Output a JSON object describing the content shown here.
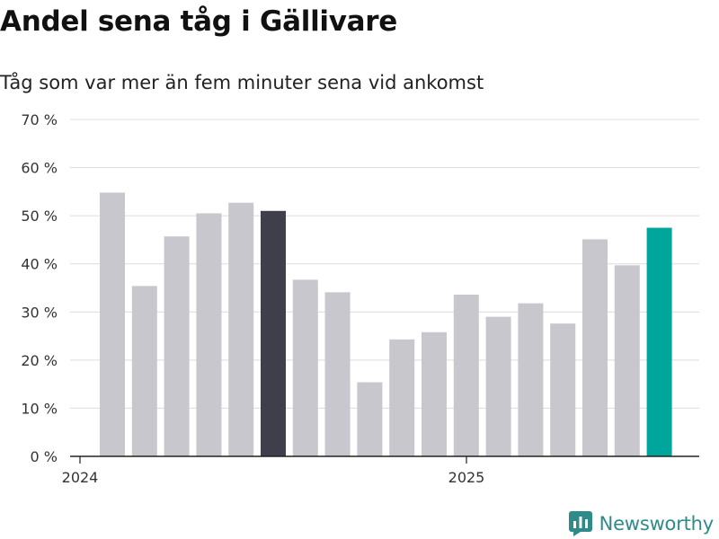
{
  "chart_data": {
    "type": "bar",
    "title": "Andel sena tåg i Gällivare",
    "subtitle": "Tåg som var mer än fem minuter sena vid ankomst",
    "x_tick_labels": [
      "2024",
      "2025"
    ],
    "y_tick_labels": [
      "0 %",
      "10 %",
      "20 %",
      "30 %",
      "40 %",
      "50 %",
      "60 %",
      "70 %"
    ],
    "ylim": [
      0,
      70
    ],
    "grid": true,
    "values": [
      54.8,
      35.4,
      45.7,
      50.5,
      52.7,
      51.0,
      36.7,
      34.1,
      15.4,
      24.3,
      25.8,
      33.6,
      29.0,
      31.8,
      27.6,
      45.1,
      39.7,
      47.5
    ],
    "bar_colors": [
      "#c8c7cd",
      "#c8c7cd",
      "#c8c7cd",
      "#c8c7cd",
      "#c8c7cd",
      "#3f3f4b",
      "#c8c7cd",
      "#c8c7cd",
      "#c8c7cd",
      "#c8c7cd",
      "#c8c7cd",
      "#c8c7cd",
      "#c8c7cd",
      "#c8c7cd",
      "#c8c7cd",
      "#c8c7cd",
      "#c8c7cd",
      "#00a69c"
    ]
  },
  "brand": {
    "name": "Newsworthy",
    "icon": "newsworthy-logo-icon",
    "color": "#2f8a8a"
  }
}
